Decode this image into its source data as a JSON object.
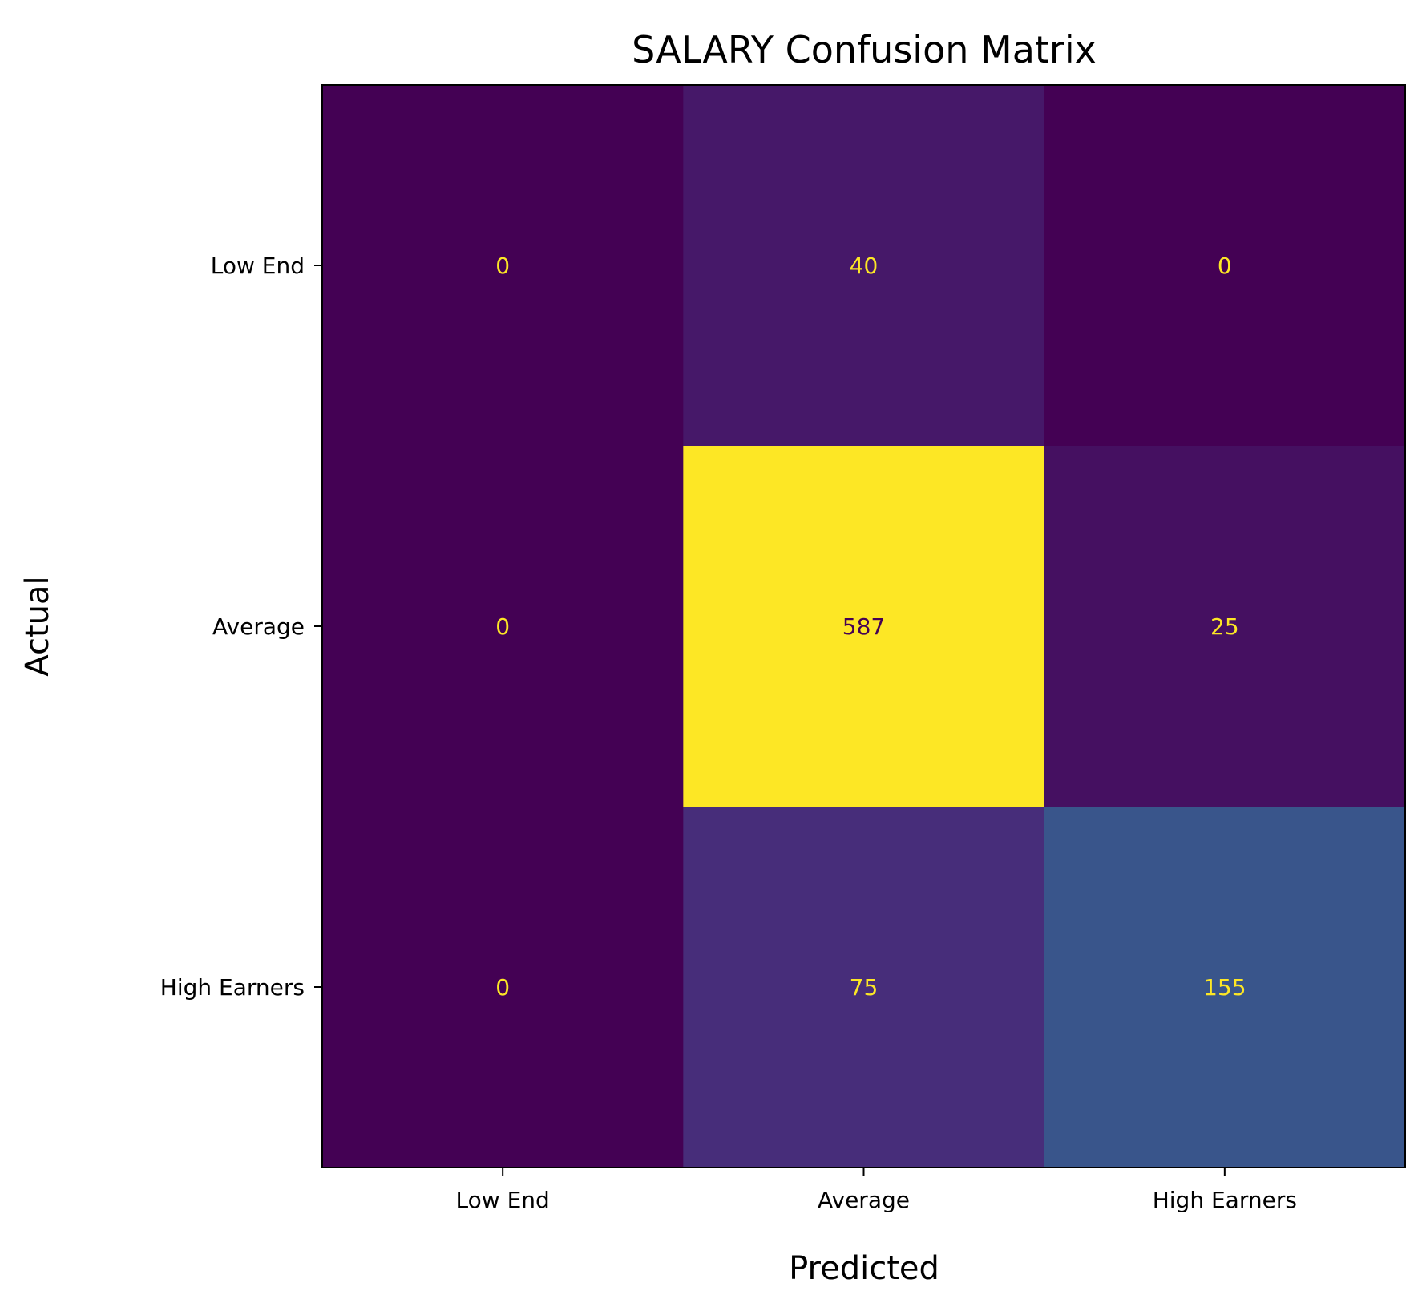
{
  "chart_data": {
    "type": "heatmap",
    "title": "SALARY Confusion Matrix",
    "xlabel": "Predicted",
    "ylabel": "Actual",
    "x_categories": [
      "Low End",
      "Average",
      "High Earners"
    ],
    "y_categories": [
      "Low End",
      "Average",
      "High Earners"
    ],
    "matrix": [
      [
        0,
        40,
        0
      ],
      [
        0,
        587,
        25
      ],
      [
        0,
        75,
        155
      ]
    ],
    "colormap": "viridis",
    "value_range": [
      0,
      587
    ],
    "grid": false,
    "colorbar": false,
    "colors": {
      "low": "#440154",
      "high": "#fde725"
    }
  }
}
